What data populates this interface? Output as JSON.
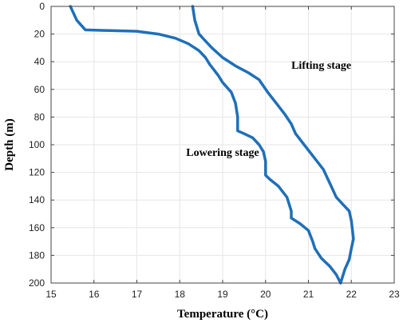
{
  "chart_data": {
    "type": "line",
    "xlabel": "Temperature (°C)",
    "ylabel": "Depth (m)",
    "xlim": [
      15,
      23
    ],
    "ylim": [
      0,
      200
    ],
    "y_inverted": true,
    "x_ticks": [
      15,
      16,
      17,
      18,
      19,
      20,
      21,
      22,
      23
    ],
    "y_ticks": [
      0,
      20,
      40,
      60,
      80,
      100,
      120,
      140,
      160,
      180,
      200
    ],
    "grid": true,
    "colors": {
      "line": "#1f6fb8",
      "grid": "#e6e6e6",
      "axis": "#444444"
    },
    "annotations": [
      {
        "text": "Lifting stage",
        "x": 21.3,
        "y": 45
      },
      {
        "text": "Lowering stage",
        "x": 19.0,
        "y": 108
      }
    ],
    "series": [
      {
        "x": [
          15.45,
          15.6,
          15.8,
          16.4,
          17.0,
          17.5,
          17.9,
          18.2,
          18.45,
          18.6,
          18.7,
          18.8,
          18.85,
          18.9,
          19.0,
          19.2,
          19.3,
          19.35,
          19.35,
          19.35,
          19.5,
          19.7,
          19.85,
          19.95,
          20.0,
          20.0,
          20.1,
          20.3,
          20.5,
          20.6,
          20.6,
          20.8,
          21.0,
          21.1,
          21.15,
          21.3,
          21.5,
          21.65,
          21.75
        ],
        "y": [
          0,
          10,
          17,
          17.5,
          18,
          20,
          23,
          27,
          32,
          37,
          42,
          46,
          48,
          50,
          55,
          62,
          70,
          80,
          88,
          90,
          92,
          95,
          100,
          105,
          112,
          122,
          125,
          130,
          138,
          148,
          153,
          157,
          162,
          170,
          175,
          182,
          188,
          194,
          200
        ]
      },
      {
        "x": [
          18.3,
          18.35,
          18.45,
          18.6,
          18.75,
          19.0,
          19.3,
          19.6,
          19.85,
          20.05,
          20.25,
          20.45,
          20.6,
          20.7,
          20.9,
          21.15,
          21.35,
          21.5,
          21.65,
          21.8,
          21.95,
          22.0,
          22.05,
          22.0,
          21.95,
          21.85,
          21.8,
          21.75
        ],
        "y": [
          0,
          10,
          20,
          25,
          30,
          37,
          43,
          48,
          53,
          62,
          70,
          78,
          85,
          92,
          100,
          110,
          118,
          128,
          138,
          143,
          148,
          155,
          168,
          175,
          183,
          190,
          195,
          200
        ]
      }
    ]
  }
}
